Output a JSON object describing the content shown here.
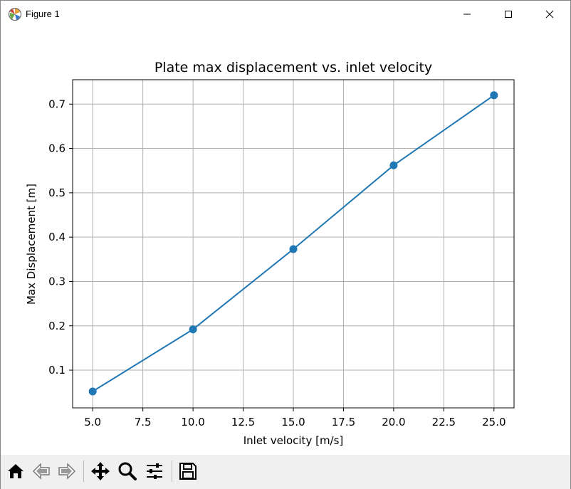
{
  "window": {
    "title": "Figure 1",
    "icons": {
      "app": "matplotlib-icon",
      "minimize": "minimize-icon",
      "maximize": "maximize-icon",
      "close": "close-icon"
    }
  },
  "toolbar": {
    "buttons": [
      "home-icon",
      "back-arrow-icon",
      "forward-arrow-icon",
      "pan-icon",
      "zoom-icon",
      "configure-subplots-icon",
      "save-icon"
    ]
  },
  "chart_data": {
    "type": "line",
    "title": "Plate max displacement vs. inlet velocity",
    "xlabel": "Inlet velocity [m/s]",
    "ylabel": "Max Displacement [m]",
    "xlim": [
      4.0,
      26.0
    ],
    "ylim": [
      0.015,
      0.755
    ],
    "xticks": [
      "5.0",
      "7.5",
      "10.0",
      "12.5",
      "15.0",
      "17.5",
      "20.0",
      "22.5",
      "25.0"
    ],
    "yticks": [
      "0.1",
      "0.2",
      "0.3",
      "0.4",
      "0.5",
      "0.6",
      "0.7"
    ],
    "grid": true,
    "series": [
      {
        "color": "#1f77b4",
        "marker": "circle",
        "x": [
          5,
          10,
          15,
          20,
          25
        ],
        "y": [
          0.052,
          0.192,
          0.373,
          0.562,
          0.72
        ]
      }
    ]
  }
}
